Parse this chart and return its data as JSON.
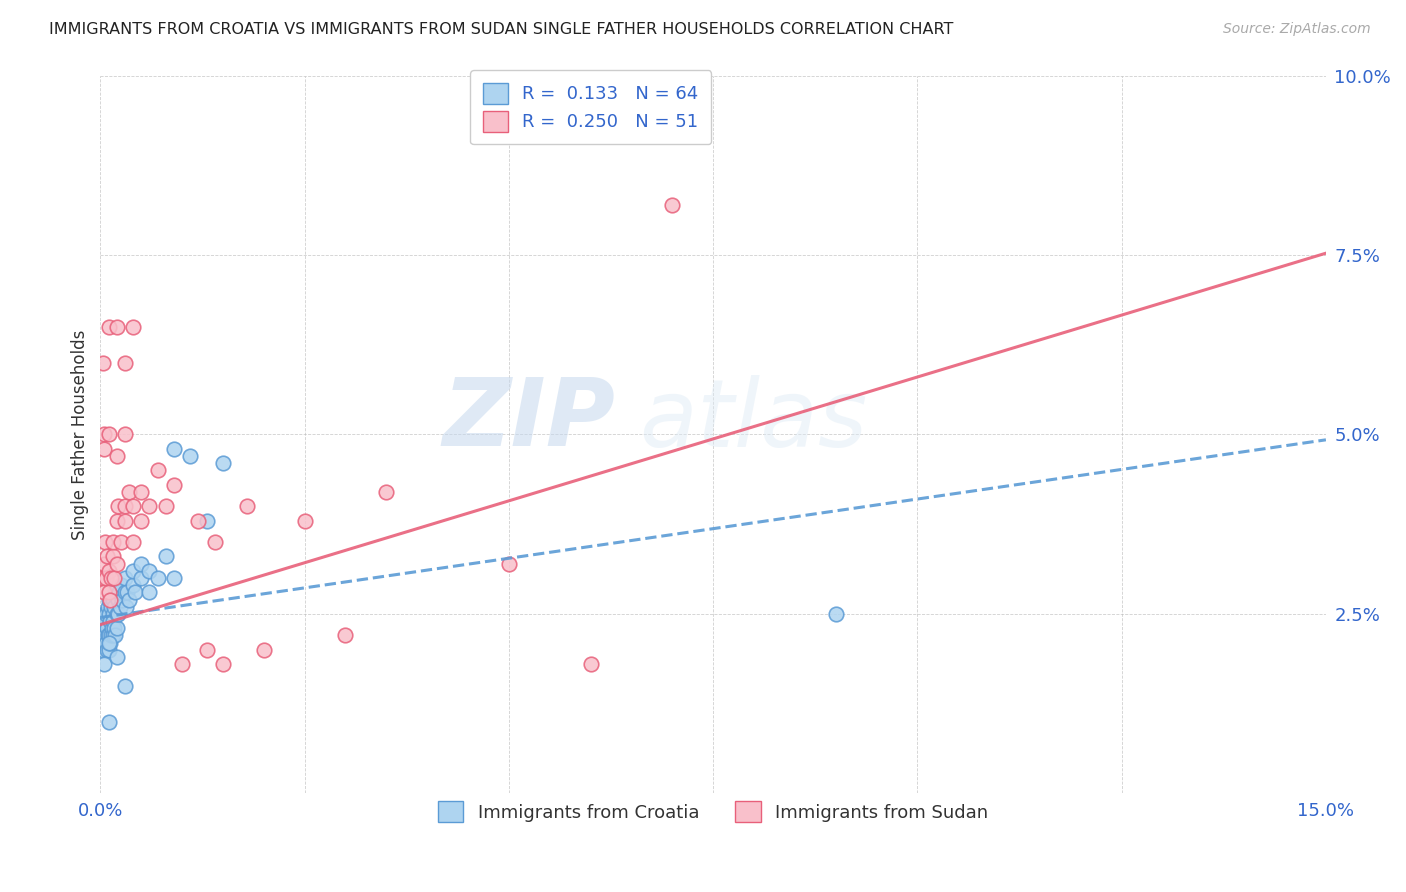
{
  "title": "IMMIGRANTS FROM CROATIA VS IMMIGRANTS FROM SUDAN SINGLE FATHER HOUSEHOLDS CORRELATION CHART",
  "source": "Source: ZipAtlas.com",
  "ylabel": "Single Father Households",
  "xlim": [
    0.0,
    0.15
  ],
  "ylim": [
    0.0,
    0.1
  ],
  "xtick_vals": [
    0.0,
    0.025,
    0.05,
    0.075,
    0.1,
    0.125,
    0.15
  ],
  "xtick_labels": [
    "0.0%",
    "",
    "",
    "",
    "",
    "",
    "15.0%"
  ],
  "ytick_vals": [
    0.0,
    0.025,
    0.05,
    0.075,
    0.1
  ],
  "ytick_labels": [
    "",
    "2.5%",
    "5.0%",
    "7.5%",
    "10.0%"
  ],
  "croatia_face_color": "#AED4F0",
  "croatia_edge_color": "#5B9BD5",
  "sudan_face_color": "#F9C0CB",
  "sudan_edge_color": "#E8607A",
  "croatia_line_color": "#5B9BD5",
  "sudan_line_color": "#E8607A",
  "R_croatia": 0.133,
  "N_croatia": 64,
  "R_sudan": 0.25,
  "N_sudan": 51,
  "legend_label_croatia": "Immigrants from Croatia",
  "legend_label_sudan": "Immigrants from Sudan",
  "watermark_zip": "ZIP",
  "watermark_atlas": "atlas",
  "croatia_line_intercept": 0.0245,
  "croatia_line_slope": 0.165,
  "sudan_line_intercept": 0.0235,
  "sudan_line_slope": 0.345,
  "croatia_x": [
    0.0002,
    0.0003,
    0.0003,
    0.0004,
    0.0005,
    0.0005,
    0.0006,
    0.0006,
    0.0007,
    0.0007,
    0.0008,
    0.0008,
    0.0009,
    0.0009,
    0.001,
    0.001,
    0.001,
    0.001,
    0.0012,
    0.0012,
    0.0013,
    0.0013,
    0.0014,
    0.0015,
    0.0015,
    0.0016,
    0.0016,
    0.0017,
    0.0017,
    0.0018,
    0.0018,
    0.002,
    0.002,
    0.0021,
    0.0022,
    0.0023,
    0.0024,
    0.0025,
    0.0026,
    0.003,
    0.003,
    0.0032,
    0.0033,
    0.0035,
    0.004,
    0.004,
    0.0042,
    0.005,
    0.005,
    0.006,
    0.006,
    0.007,
    0.008,
    0.009,
    0.009,
    0.011,
    0.013,
    0.015,
    0.0005,
    0.001,
    0.002,
    0.003,
    0.001,
    0.09
  ],
  "croatia_y": [
    0.022,
    0.02,
    0.024,
    0.021,
    0.023,
    0.025,
    0.022,
    0.024,
    0.021,
    0.025,
    0.02,
    0.023,
    0.022,
    0.026,
    0.02,
    0.022,
    0.025,
    0.027,
    0.021,
    0.024,
    0.022,
    0.026,
    0.023,
    0.025,
    0.027,
    0.022,
    0.024,
    0.023,
    0.026,
    0.022,
    0.028,
    0.023,
    0.025,
    0.027,
    0.025,
    0.028,
    0.026,
    0.029,
    0.027,
    0.028,
    0.03,
    0.026,
    0.028,
    0.027,
    0.029,
    0.031,
    0.028,
    0.03,
    0.032,
    0.028,
    0.031,
    0.03,
    0.033,
    0.03,
    0.048,
    0.047,
    0.038,
    0.046,
    0.018,
    0.021,
    0.019,
    0.015,
    0.01,
    0.025
  ],
  "sudan_x": [
    0.0003,
    0.0004,
    0.0005,
    0.0006,
    0.0007,
    0.0008,
    0.001,
    0.001,
    0.0012,
    0.0013,
    0.0015,
    0.0016,
    0.0017,
    0.002,
    0.002,
    0.0022,
    0.0025,
    0.003,
    0.003,
    0.0035,
    0.004,
    0.004,
    0.005,
    0.005,
    0.006,
    0.007,
    0.008,
    0.009,
    0.01,
    0.012,
    0.013,
    0.014,
    0.015,
    0.018,
    0.02,
    0.025,
    0.03,
    0.035,
    0.05,
    0.06,
    0.07,
    0.0003,
    0.0004,
    0.0005,
    0.001,
    0.001,
    0.002,
    0.003,
    0.004,
    0.002,
    0.003
  ],
  "sudan_y": [
    0.03,
    0.028,
    0.032,
    0.035,
    0.03,
    0.033,
    0.028,
    0.031,
    0.027,
    0.03,
    0.033,
    0.035,
    0.03,
    0.038,
    0.032,
    0.04,
    0.035,
    0.04,
    0.038,
    0.042,
    0.035,
    0.04,
    0.038,
    0.042,
    0.04,
    0.045,
    0.04,
    0.043,
    0.018,
    0.038,
    0.02,
    0.035,
    0.018,
    0.04,
    0.02,
    0.038,
    0.022,
    0.042,
    0.032,
    0.018,
    0.082,
    0.06,
    0.05,
    0.048,
    0.05,
    0.065,
    0.065,
    0.05,
    0.065,
    0.047,
    0.06
  ]
}
